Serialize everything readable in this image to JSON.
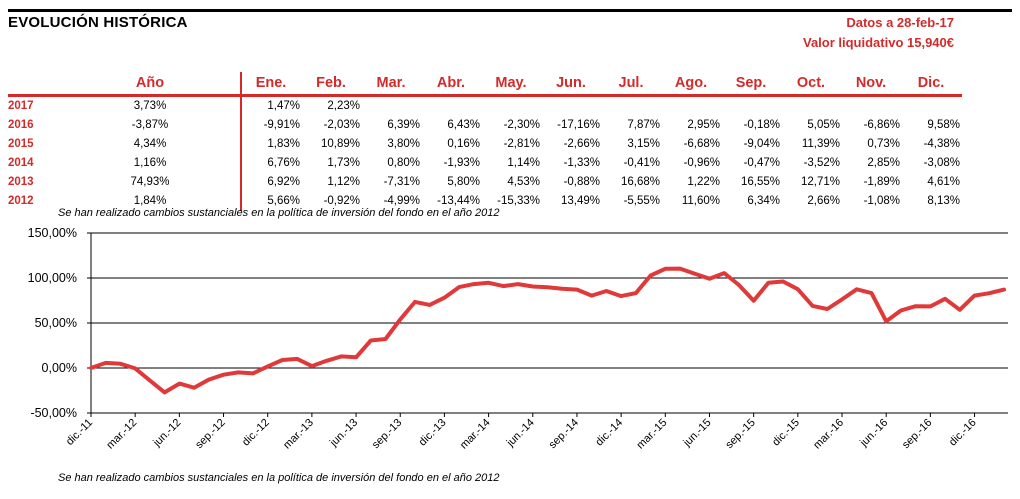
{
  "header": {
    "title": "EVOLUCIÓN HISTÓRICA",
    "date_label": "Datos a 28-feb-17",
    "nav_label": "Valor liquidativo 15,940€"
  },
  "table": {
    "year_header": "",
    "annual_header": "Año",
    "months": [
      "Ene.",
      "Feb.",
      "Mar.",
      "Abr.",
      "May.",
      "Jun.",
      "Jul.",
      "Ago.",
      "Sep.",
      "Oct.",
      "Nov.",
      "Dic."
    ],
    "rows": [
      {
        "year": "2017",
        "annual": "3,73%",
        "monthly": [
          "1,47%",
          "2,23%",
          "",
          "",
          "",
          "",
          "",
          "",
          "",
          "",
          "",
          ""
        ]
      },
      {
        "year": "2016",
        "annual": "-3,87%",
        "monthly": [
          "-9,91%",
          "-2,03%",
          "6,39%",
          "6,43%",
          "-2,30%",
          "-17,16%",
          "7,87%",
          "2,95%",
          "-0,18%",
          "5,05%",
          "-6,86%",
          "9,58%"
        ]
      },
      {
        "year": "2015",
        "annual": "4,34%",
        "monthly": [
          "1,83%",
          "10,89%",
          "3,80%",
          "0,16%",
          "-2,81%",
          "-2,66%",
          "3,15%",
          "-6,68%",
          "-9,04%",
          "11,39%",
          "0,73%",
          "-4,38%"
        ]
      },
      {
        "year": "2014",
        "annual": "1,16%",
        "monthly": [
          "6,76%",
          "1,73%",
          "0,80%",
          "-1,93%",
          "1,14%",
          "-1,33%",
          "-0,41%",
          "-0,96%",
          "-0,47%",
          "-3,52%",
          "2,85%",
          "-3,08%"
        ]
      },
      {
        "year": "2013",
        "annual": "74,93%",
        "monthly": [
          "6,92%",
          "1,12%",
          "-7,31%",
          "5,80%",
          "4,53%",
          "-0,88%",
          "16,68%",
          "1,22%",
          "16,55%",
          "12,71%",
          "-1,89%",
          "4,61%"
        ]
      },
      {
        "year": "2012",
        "annual": "1,84%",
        "monthly": [
          "5,66%",
          "-0,92%",
          "-4,99%",
          "-13,44%",
          "-15,33%",
          "13,49%",
          "-5,55%",
          "11,60%",
          "6,34%",
          "2,66%",
          "-1,08%",
          "8,13%"
        ]
      }
    ]
  },
  "notes": {
    "table_note": "Se han realizado cambios sustanciales en la política de inversión del fondo en el año 2012",
    "chart_note": "Se han realizado cambios sustanciales en la política de inversión del fondo en el año 2012"
  },
  "colors": {
    "accent": "#d42a2a",
    "line": "#e0393a",
    "grid": "#000000"
  },
  "chart_data": {
    "type": "line",
    "title": "",
    "xlabel": "",
    "ylabel": "",
    "ylim": [
      -50,
      150
    ],
    "yticks": [
      -50,
      0,
      50,
      100,
      150
    ],
    "ytick_labels": [
      "-50,00%",
      "0,00%",
      "50,00%",
      "100,00%",
      "150,00%"
    ],
    "xtick_labels": [
      "dic.-11",
      "mar.-12",
      "jun.-12",
      "sep.-12",
      "dic.-12",
      "mar.-13",
      "jun.-13",
      "sep.-13",
      "dic.-13",
      "mar.-14",
      "jun.-14",
      "sep.-14",
      "dic.-14",
      "mar.-15",
      "jun.-15",
      "sep.-15",
      "dic.-15",
      "mar.-16",
      "jun.-16",
      "sep.-16",
      "dic.-16"
    ],
    "grid": "horizontal",
    "legend": "none",
    "series": [
      {
        "x": [
          "dic.-11",
          "ene.-12",
          "feb.-12",
          "mar.-12",
          "abr.-12",
          "may.-12",
          "jun.-12",
          "jul.-12",
          "ago.-12",
          "sep.-12",
          "oct.-12",
          "nov.-12",
          "dic.-12",
          "ene.-13",
          "feb.-13",
          "mar.-13",
          "abr.-13",
          "may.-13",
          "jun.-13",
          "jul.-13",
          "ago.-13",
          "sep.-13",
          "oct.-13",
          "nov.-13",
          "dic.-13",
          "ene.-14",
          "feb.-14",
          "mar.-14",
          "abr.-14",
          "may.-14",
          "jun.-14",
          "jul.-14",
          "ago.-14",
          "sep.-14",
          "oct.-14",
          "nov.-14",
          "dic.-14",
          "ene.-15",
          "feb.-15",
          "mar.-15",
          "abr.-15",
          "may.-15",
          "jun.-15",
          "jul.-15",
          "ago.-15",
          "sep.-15",
          "oct.-15",
          "nov.-15",
          "dic.-15",
          "ene.-16",
          "feb.-16",
          "mar.-16",
          "abr.-16",
          "may.-16",
          "jun.-16",
          "jul.-16",
          "ago.-16",
          "sep.-16",
          "oct.-16",
          "nov.-16",
          "dic.-16",
          "ene.-17",
          "feb.-17"
        ],
        "values": [
          0,
          5.7,
          4.7,
          -0.5,
          -13.9,
          -27.1,
          -17.3,
          -21.9,
          -12.9,
          -7.4,
          -4.9,
          -6.0,
          1.8,
          8.9,
          10.1,
          2.1,
          8.0,
          12.9,
          11.9,
          30.6,
          32.2,
          53.9,
          73.4,
          70.1,
          78.1,
          89.9,
          93.2,
          94.7,
          91.0,
          93.2,
          90.6,
          89.8,
          88.0,
          87.1,
          80.5,
          85.6,
          79.9,
          83.2,
          102.8,
          110.2,
          110.5,
          104.7,
          99.2,
          105.5,
          92.2,
          74.8,
          94.7,
          96.1,
          87.6,
          69.0,
          65.6,
          76.2,
          87.5,
          83.2,
          51.9,
          63.9,
          68.7,
          68.4,
          76.9,
          64.7,
          80.5,
          83.1,
          87.1
        ]
      }
    ]
  }
}
